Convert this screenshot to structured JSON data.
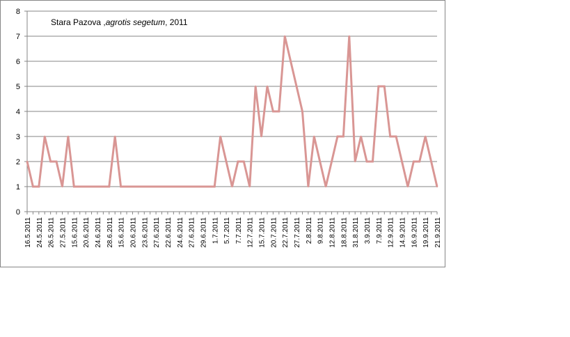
{
  "chart_data": {
    "type": "line",
    "title_parts": [
      {
        "text": "Stara Pazova ,",
        "italic": false
      },
      {
        "text": "agrotis segetum",
        "italic": true
      },
      {
        "text": ", 2011",
        "italic": false
      }
    ],
    "xlabel": "",
    "ylabel": "",
    "ylim": [
      0,
      8
    ],
    "yticks": [
      0,
      1,
      2,
      3,
      4,
      5,
      6,
      7,
      8
    ],
    "grid": true,
    "legend": "none",
    "line_color": "#d99694",
    "grid_color": "#868686",
    "categories": [
      "16.5.2011",
      "",
      "24.5.2011",
      "",
      "26.5.2011",
      "",
      "27.5.2011",
      "",
      "15.6.2011",
      "",
      "20.6.2011",
      "",
      "24.6.2011",
      "",
      "28.6.2011",
      "",
      "15.6.2011",
      "",
      "20.6.2011",
      "",
      "23.6.2011",
      "",
      "27.6.2011",
      "",
      "22.6.2011",
      "",
      "24.6.2011",
      "",
      "27.6.2011",
      "",
      "29.6.2011",
      "",
      "1.7.2011",
      "",
      "5.7.2011",
      "",
      "7.7.2011",
      "",
      "12.7.2011",
      "",
      "15.7.2011",
      "",
      "20.7.2011",
      "",
      "22.7.2011",
      "",
      "27.7.2011",
      "",
      "2.8.2011",
      "",
      "9.8.2011",
      "",
      "12.8.2011",
      "",
      "18.8.2011",
      "",
      "31.8.2011",
      "",
      "3.9.2011",
      "",
      "7.9.2011",
      "",
      "12.9.2011",
      "",
      "14.9.2011",
      "",
      "16.9.2011",
      "",
      "19.9.2011",
      "",
      "21.9.2011"
    ],
    "values": [
      2,
      1,
      1,
      3,
      2,
      2,
      1,
      3,
      1,
      1,
      1,
      1,
      1,
      1,
      1,
      3,
      1,
      1,
      1,
      1,
      1,
      1,
      1,
      1,
      1,
      1,
      1,
      1,
      1,
      1,
      1,
      1,
      1,
      3,
      2,
      1,
      2,
      2,
      1,
      5,
      3,
      5,
      4,
      4,
      7,
      6,
      5,
      4,
      1,
      3,
      2,
      1,
      2,
      3,
      3,
      7,
      2,
      3,
      2,
      2,
      5,
      5,
      3,
      3,
      2,
      1,
      2,
      2,
      3,
      2,
      1
    ]
  }
}
